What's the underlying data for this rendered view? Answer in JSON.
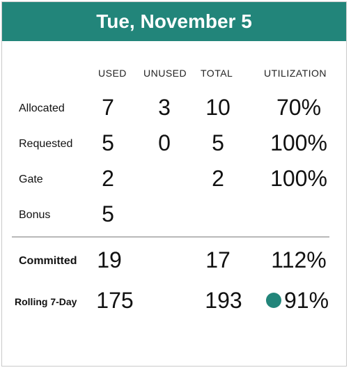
{
  "title": "Tue, November 5",
  "columns": {
    "used": "USED",
    "unused": "UNUSED",
    "total": "TOTAL",
    "utilization": "UTILIZATION"
  },
  "rows": [
    {
      "label": "Allocated",
      "used": "7",
      "unused": "3",
      "total": "10",
      "utilization": "70%"
    },
    {
      "label": "Requested",
      "used": "5",
      "unused": "0",
      "total": "5",
      "utilization": "100%"
    },
    {
      "label": "Gate",
      "used": "2",
      "unused": "",
      "total": "2",
      "utilization": "100%"
    },
    {
      "label": "Bonus",
      "used": "5",
      "unused": "",
      "total": "",
      "utilization": ""
    }
  ],
  "summary": [
    {
      "label": "Committed",
      "used": "19",
      "total": "17",
      "utilization": "112%"
    },
    {
      "label": "Rolling 7-Day",
      "used": "175",
      "total": "193",
      "utilization": "91%",
      "status_color": "#22857a"
    }
  ]
}
